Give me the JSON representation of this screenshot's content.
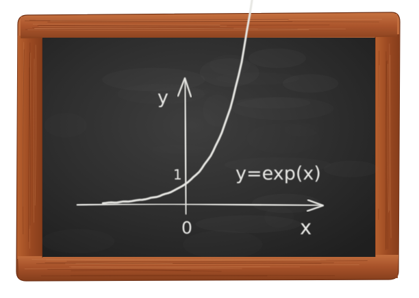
{
  "labels": {
    "y_axis": "y",
    "x_axis": "x",
    "y_tick": "1",
    "origin": "0",
    "equation": "y=exp(x)"
  },
  "colors": {
    "background": "#ffffff",
    "frame_wood": "#a9552b",
    "frame_wood_dark": "#7a3618",
    "frame_wood_light": "#c8774a",
    "board": "#2b2b2b",
    "board_light": "#3b3b3b",
    "chalk": "#e8e8e4"
  }
}
